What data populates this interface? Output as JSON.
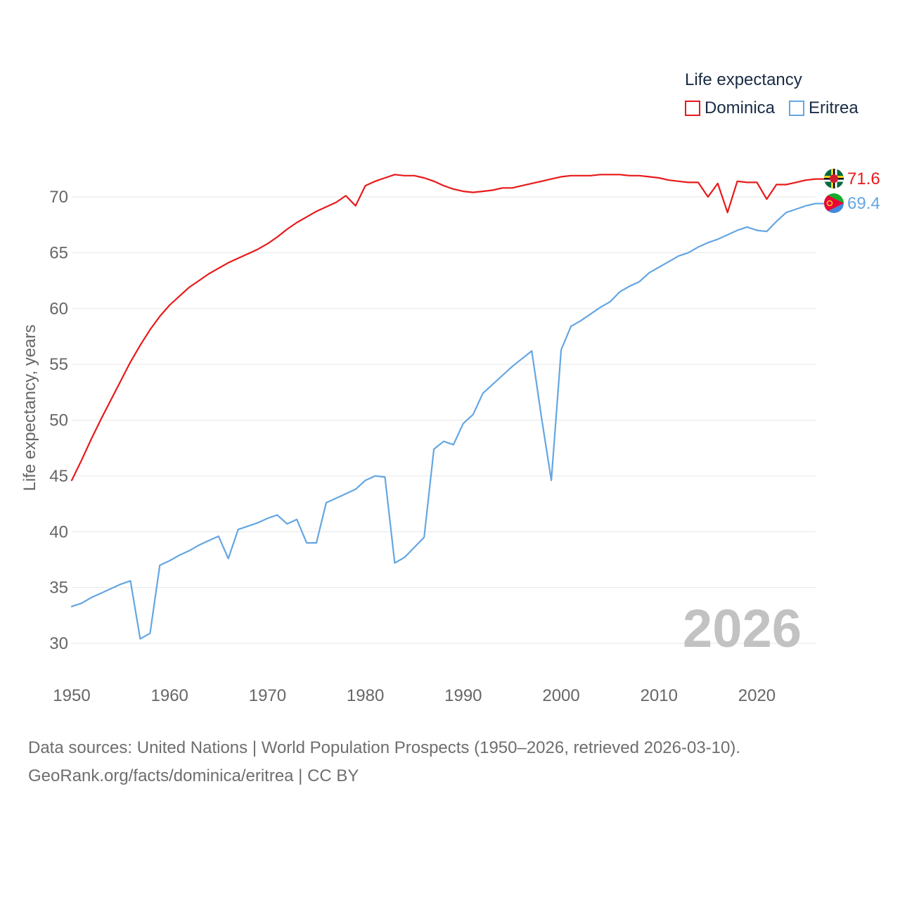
{
  "chart_data": {
    "type": "line",
    "ylabel": "Life expectancy, years",
    "xlabel": "",
    "xlim": [
      1950,
      2026
    ],
    "ylim": [
      27.5,
      73.5
    ],
    "x_ticks": [
      1950,
      1960,
      1970,
      1980,
      1990,
      2000,
      2010,
      2020
    ],
    "y_ticks": [
      30,
      35,
      40,
      45,
      50,
      55,
      60,
      65,
      70
    ],
    "year_watermark": "2026",
    "legend_title": "Life expectancy",
    "series": [
      {
        "name": "Dominica",
        "color": "#e8191a",
        "end_label": "71.6",
        "flag": "dominica-flag",
        "x": [
          1950,
          1951,
          1952,
          1953,
          1954,
          1955,
          1956,
          1957,
          1958,
          1959,
          1960,
          1961,
          1962,
          1963,
          1964,
          1965,
          1966,
          1967,
          1968,
          1969,
          1970,
          1971,
          1972,
          1973,
          1974,
          1975,
          1976,
          1977,
          1978,
          1979,
          1980,
          1981,
          1982,
          1983,
          1984,
          1985,
          1986,
          1987,
          1988,
          1989,
          1990,
          1991,
          1992,
          1993,
          1994,
          1995,
          1996,
          1997,
          1998,
          1999,
          2000,
          2001,
          2002,
          2003,
          2004,
          2005,
          2006,
          2007,
          2008,
          2009,
          2010,
          2011,
          2012,
          2013,
          2014,
          2015,
          2016,
          2017,
          2018,
          2019,
          2020,
          2021,
          2022,
          2023,
          2024,
          2025,
          2026
        ],
        "values": [
          44.6,
          46.4,
          48.3,
          50.1,
          51.8,
          53.5,
          55.2,
          56.7,
          58.1,
          59.3,
          60.3,
          61.1,
          61.9,
          62.5,
          63.1,
          63.6,
          64.1,
          64.5,
          64.9,
          65.3,
          65.8,
          66.4,
          67.1,
          67.7,
          68.2,
          68.7,
          69.1,
          69.5,
          70.1,
          69.2,
          71.0,
          71.4,
          71.7,
          72.0,
          71.9,
          71.9,
          71.7,
          71.4,
          71.0,
          70.7,
          70.5,
          70.4,
          70.5,
          70.6,
          70.8,
          70.8,
          71.0,
          71.2,
          71.4,
          71.6,
          71.8,
          71.9,
          71.9,
          71.9,
          72.0,
          72.0,
          72.0,
          71.9,
          71.9,
          71.8,
          71.7,
          71.5,
          71.4,
          71.3,
          71.3,
          70.0,
          71.2,
          68.6,
          71.4,
          71.3,
          71.3,
          69.8,
          71.1,
          71.1,
          71.3,
          71.5,
          71.6
        ]
      },
      {
        "name": "Eritrea",
        "color": "#64a6e2",
        "end_label": "69.4",
        "flag": "eritrea-flag",
        "x": [
          1950,
          1951,
          1952,
          1953,
          1954,
          1955,
          1956,
          1957,
          1958,
          1959,
          1960,
          1961,
          1962,
          1963,
          1964,
          1965,
          1966,
          1967,
          1968,
          1969,
          1970,
          1971,
          1972,
          1973,
          1974,
          1975,
          1976,
          1977,
          1978,
          1979,
          1980,
          1981,
          1982,
          1983,
          1984,
          1985,
          1986,
          1987,
          1988,
          1989,
          1990,
          1991,
          1992,
          1993,
          1994,
          1995,
          1996,
          1997,
          1998,
          1999,
          2000,
          2001,
          2002,
          2003,
          2004,
          2005,
          2006,
          2007,
          2008,
          2009,
          2010,
          2011,
          2012,
          2013,
          2014,
          2015,
          2016,
          2017,
          2018,
          2019,
          2020,
          2021,
          2022,
          2023,
          2024,
          2025,
          2026
        ],
        "values": [
          33.3,
          33.6,
          34.1,
          34.5,
          34.9,
          35.3,
          35.6,
          30.4,
          30.9,
          37.0,
          37.4,
          37.9,
          38.3,
          38.8,
          39.2,
          39.6,
          37.6,
          40.2,
          40.5,
          40.8,
          41.2,
          41.5,
          40.7,
          41.1,
          39.0,
          39.0,
          42.6,
          43.0,
          43.4,
          43.8,
          44.6,
          45.0,
          44.9,
          37.2,
          37.7,
          38.6,
          39.5,
          47.4,
          48.1,
          47.8,
          49.7,
          50.5,
          52.4,
          53.2,
          54.0,
          54.8,
          55.5,
          56.2,
          50.2,
          44.6,
          56.3,
          58.4,
          58.9,
          59.5,
          60.1,
          60.6,
          61.5,
          62.0,
          62.4,
          63.2,
          63.7,
          64.2,
          64.7,
          65.0,
          65.5,
          65.9,
          66.2,
          66.6,
          67.0,
          67.3,
          67.0,
          66.9,
          67.8,
          68.6,
          68.9,
          69.2,
          69.4
        ]
      }
    ]
  },
  "footer": {
    "line1": "Data sources: United Nations | World Population Prospects (1950–2026, retrieved 2026-03-10).",
    "line2": "GeoRank.org/facts/dominica/eritrea | CC BY"
  }
}
